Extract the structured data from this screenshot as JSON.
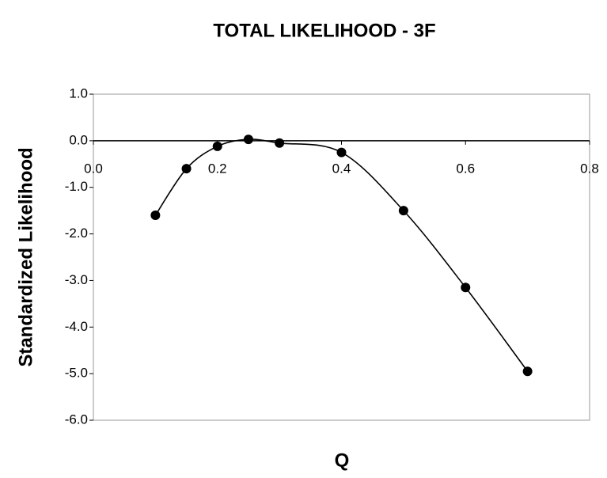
{
  "chart_data": {
    "type": "line",
    "title": "TOTAL LIKELIHOOD - 3F",
    "x_label": "Q",
    "y_label": "Standardized Likelihood",
    "x": [
      0.1,
      0.15,
      0.2,
      0.25,
      0.3,
      0.4,
      0.5,
      0.6,
      0.7
    ],
    "series": [
      {
        "color": "#000000",
        "values": [
          -1.6,
          -0.6,
          -0.12,
          0.03,
          -0.05,
          -0.25,
          -1.5,
          -3.15,
          -4.95
        ]
      }
    ],
    "smooth": true,
    "markers": true,
    "xlim": [
      0,
      0.8
    ],
    "xticks": [
      {
        "value": 0,
        "label": "0.0"
      },
      0.2,
      0.4,
      0.6,
      0.8
    ],
    "ylim": [
      -6,
      1
    ],
    "yticks": [
      {
        "value": 1,
        "label": "1.0"
      },
      {
        "value": 0,
        "label": "0.0"
      },
      {
        "value": -1,
        "label": "-1.0"
      },
      {
        "value": -2,
        "label": "-2.0"
      },
      {
        "value": -3,
        "label": "-3.0"
      },
      {
        "value": -4,
        "label": "-4.0"
      },
      {
        "value": -5,
        "label": "-5.0"
      },
      {
        "value": -6,
        "label": "-6.0"
      }
    ]
  }
}
